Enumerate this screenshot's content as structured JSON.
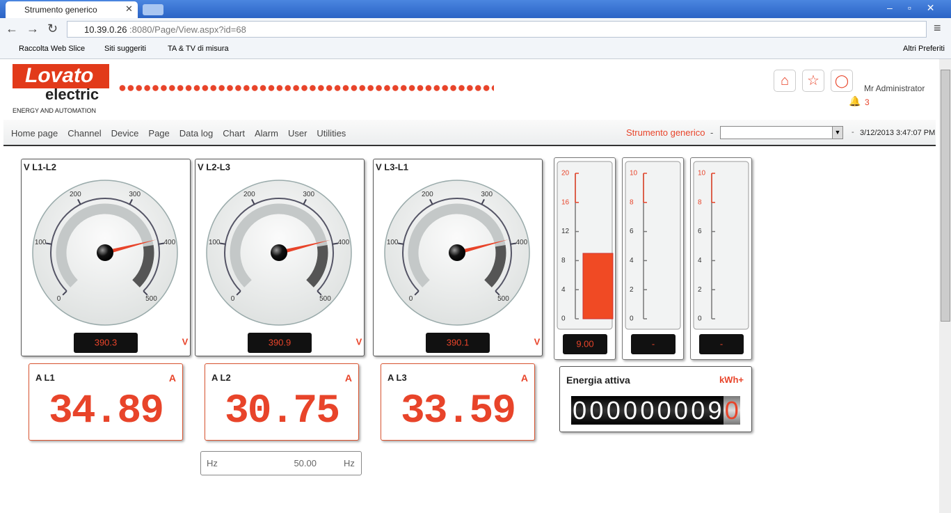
{
  "browser": {
    "tab_title": "Strumento generico",
    "url_host": "10.39.0.26",
    "url_path": ":8080/Page/View.aspx?id=68",
    "bookmarks": [
      "Raccolta Web Slice",
      "Siti suggeriti",
      "TA & TV di misura"
    ],
    "other_bookmarks": "Altri Preferiti"
  },
  "header": {
    "logo_top": "Lovato",
    "logo_bottom": "electric",
    "tagline": "ENERGY AND AUTOMATION",
    "user": "Mr Administrator",
    "alerts": "3"
  },
  "nav": {
    "items": [
      "Home page",
      "Channel",
      "Device",
      "Page",
      "Data log",
      "Chart",
      "Alarm",
      "User",
      "Utilities"
    ],
    "page_label": "Strumento generico",
    "separator": "-",
    "datetime": "3/12/2013 3:47:07 PM"
  },
  "gauges": [
    {
      "label": "V L1-L2",
      "lim": [
        0,
        500
      ],
      "ticks": [
        0,
        100,
        200,
        300,
        400,
        500
      ],
      "value": 390.3,
      "unit": "V"
    },
    {
      "label": "V L2-L3",
      "lim": [
        0,
        500
      ],
      "ticks": [
        0,
        100,
        200,
        300,
        400,
        500
      ],
      "value": 390.9,
      "unit": "V"
    },
    {
      "label": "V L3-L1",
      "lim": [
        0,
        500
      ],
      "ticks": [
        0,
        100,
        200,
        300,
        400,
        500
      ],
      "value": 390.1,
      "unit": "V"
    }
  ],
  "bar_gauges": [
    {
      "lim": [
        0,
        20
      ],
      "ticks": [
        0,
        4,
        8,
        12,
        16,
        20
      ],
      "value": 9,
      "value_label": "9.00"
    },
    {
      "lim": [
        0,
        10
      ],
      "ticks": [
        0,
        2,
        4,
        6,
        8,
        10
      ],
      "value": null,
      "value_label": "-"
    },
    {
      "lim": [
        0,
        10
      ],
      "ticks": [
        0,
        2,
        4,
        6,
        8,
        10
      ],
      "value": null,
      "value_label": "-"
    }
  ],
  "meters": [
    {
      "label": "A L1",
      "unit": "A",
      "value": 34.89
    },
    {
      "label": "A L2",
      "unit": "A",
      "value": 30.75
    },
    {
      "label": "A L3",
      "unit": "A",
      "value": 33.59
    }
  ],
  "frequency": {
    "label": "Hz",
    "value": 50,
    "value_label": "50.00",
    "unit": "Hz"
  },
  "energy": {
    "label": "Energia attiva",
    "unit": "kWh+",
    "digits": [
      "0",
      "0",
      "0",
      "0",
      "0",
      "0",
      "0",
      "0",
      "9",
      "0"
    ]
  }
}
